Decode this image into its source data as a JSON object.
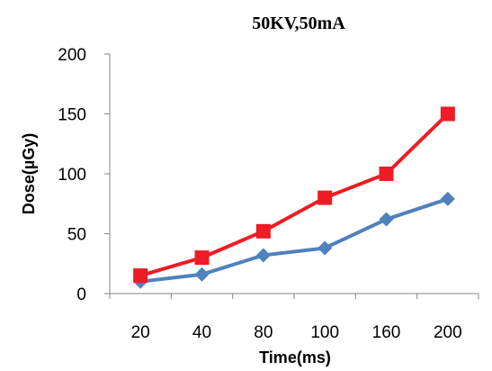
{
  "chart_data": {
    "type": "line",
    "title": "50KV,50mA",
    "xlabel": "Time(ms)",
    "ylabel": "Dose(µGy)",
    "categories": [
      "20",
      "40",
      "80",
      "100",
      "160",
      "200"
    ],
    "ylim": [
      0,
      200
    ],
    "yticks": [
      "0",
      "50",
      "100",
      "150",
      "200"
    ],
    "grid": false,
    "legend": "none",
    "series": [
      {
        "color": "#ee1c24",
        "marker": "square",
        "values": [
          15,
          30,
          52,
          80,
          100,
          150
        ]
      },
      {
        "color": "#4f81bd",
        "marker": "diamond",
        "values": [
          10,
          16,
          32,
          38,
          62,
          79
        ]
      }
    ]
  }
}
